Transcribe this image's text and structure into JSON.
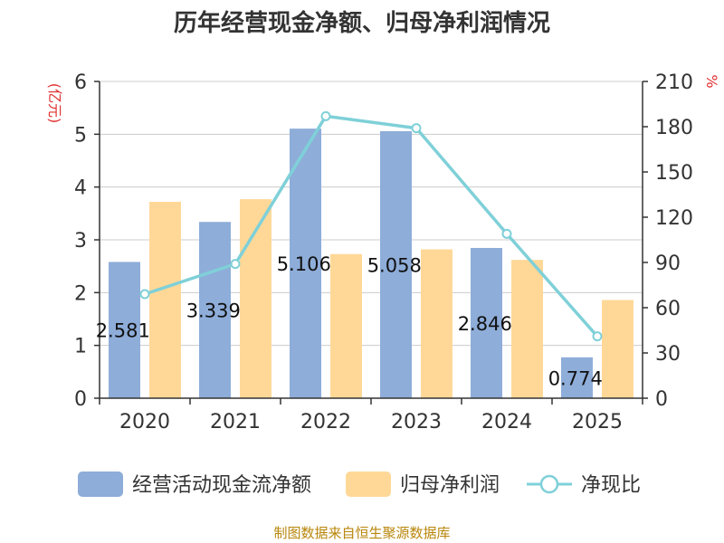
{
  "chart_data": {
    "type": "bar",
    "title": "历年经营现金净额、归母净利润情况",
    "categories": [
      "2020",
      "2021",
      "2022",
      "2023",
      "2024",
      "2025"
    ],
    "series": [
      {
        "name": "经营活动现金流净额",
        "kind": "bar",
        "axis": "left",
        "color": "#8eadd9",
        "values": [
          2.581,
          3.339,
          5.106,
          5.058,
          2.846,
          0.774
        ]
      },
      {
        "name": "归母净利润",
        "kind": "bar",
        "axis": "left",
        "color": "#ffd898",
        "values": [
          3.72,
          3.77,
          2.73,
          2.82,
          2.62,
          1.86
        ]
      },
      {
        "name": "净现比",
        "kind": "line",
        "axis": "right",
        "color": "#7fd0d8",
        "values": [
          69,
          89,
          187,
          179,
          109,
          41
        ]
      }
    ],
    "data_labels": [
      "2.581",
      "3.339",
      "5.106",
      "5.058",
      "2.846",
      "0.774"
    ],
    "left_axis": {
      "unit": "(亿元)",
      "min": 0,
      "max": 6,
      "ticks": [
        "0",
        "1",
        "2",
        "3",
        "4",
        "5",
        "6"
      ]
    },
    "right_axis": {
      "unit": "%",
      "min": 0,
      "max": 210,
      "ticks": [
        "0",
        "30",
        "60",
        "90",
        "120",
        "150",
        "180",
        "210"
      ]
    },
    "grid": true,
    "legend_position": "bottom"
  },
  "source": "制图数据来自恒生聚源数据库"
}
